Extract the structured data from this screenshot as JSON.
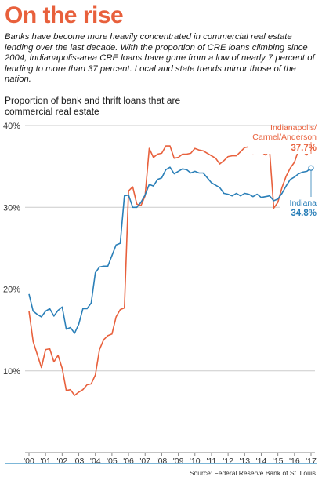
{
  "header": {
    "title": "On the rise",
    "deck": "Banks have become more heavily concentrated in commercial real estate lending over the last decade. With the proportion of CRE loans climbing since 2004, Indianapolis-area CRE loans have gone from a low of nearly 7 percent of lending to more than 37 percent. Local and state trends mirror those of the nation.",
    "chart_title": "Proportion of bank and thrift loans that are commercial real estate"
  },
  "footer": {
    "source": "Source: Federal Reserve Bank of St. Louis"
  },
  "colors": {
    "title": "#e8603c",
    "indianapolis": "#e8603c",
    "indiana": "#2a7fb8",
    "grid": "#cccccc",
    "axis": "#888888",
    "rule": "#7db7d8"
  },
  "chart_data": {
    "type": "line",
    "title": "Proportion of bank and thrift loans that are commercial real estate",
    "xlabel": "",
    "ylabel": "",
    "ylim": [
      0,
      40
    ],
    "y_ticks": [
      "10%",
      "20%",
      "30%",
      "40%"
    ],
    "x_tick_labels": [
      "'00",
      "'01",
      "'02",
      "'03",
      "'04",
      "'05",
      "'06",
      "'07",
      "'08",
      "'09",
      "'10",
      "'11",
      "'12",
      "'13",
      "'14",
      "'15",
      "'16",
      "'17"
    ],
    "grid": "horizontal",
    "series": [
      {
        "name": "Indianapolis/ Carmel/Anderson",
        "end_label_1": "Indianapolis/",
        "end_label_2": "Carmel/Anderson",
        "end_value_label": "37.7%",
        "color": "#e8603c",
        "points": [
          [
            2000.0,
            17.3
          ],
          [
            2000.25,
            13.6
          ],
          [
            2000.5,
            12.0
          ],
          [
            2000.75,
            10.4
          ],
          [
            2001.0,
            12.6
          ],
          [
            2001.25,
            12.7
          ],
          [
            2001.5,
            11.1
          ],
          [
            2001.75,
            11.9
          ],
          [
            2002.0,
            10.3
          ],
          [
            2002.25,
            7.6
          ],
          [
            2002.5,
            7.7
          ],
          [
            2002.75,
            7.0
          ],
          [
            2003.0,
            7.4
          ],
          [
            2003.25,
            7.7
          ],
          [
            2003.5,
            8.3
          ],
          [
            2003.75,
            8.4
          ],
          [
            2004.0,
            9.5
          ],
          [
            2004.25,
            12.6
          ],
          [
            2004.5,
            13.8
          ],
          [
            2004.75,
            14.3
          ],
          [
            2005.0,
            14.5
          ],
          [
            2005.25,
            16.6
          ],
          [
            2005.5,
            17.5
          ],
          [
            2005.75,
            17.7
          ],
          [
            2006.0,
            32.0
          ],
          [
            2006.25,
            32.5
          ],
          [
            2006.5,
            30.4
          ],
          [
            2006.75,
            30.2
          ],
          [
            2007.0,
            31.4
          ],
          [
            2007.25,
            37.2
          ],
          [
            2007.5,
            36.1
          ],
          [
            2007.75,
            36.5
          ],
          [
            2008.0,
            36.6
          ],
          [
            2008.25,
            37.5
          ],
          [
            2008.5,
            37.5
          ],
          [
            2008.75,
            36.0
          ],
          [
            2009.0,
            36.1
          ],
          [
            2009.25,
            36.5
          ],
          [
            2009.5,
            36.5
          ],
          [
            2009.75,
            36.6
          ],
          [
            2010.0,
            37.2
          ],
          [
            2010.25,
            37.0
          ],
          [
            2010.5,
            36.9
          ],
          [
            2010.75,
            36.6
          ],
          [
            2011.0,
            36.3
          ],
          [
            2011.25,
            36.0
          ],
          [
            2011.5,
            35.3
          ],
          [
            2011.75,
            35.7
          ],
          [
            2012.0,
            36.2
          ],
          [
            2012.25,
            36.3
          ],
          [
            2012.5,
            36.3
          ],
          [
            2012.75,
            36.8
          ],
          [
            2013.0,
            37.3
          ],
          [
            2013.25,
            37.4
          ],
          [
            2013.5,
            36.6
          ],
          [
            2013.75,
            37.0
          ],
          [
            2014.0,
            36.8
          ],
          [
            2014.25,
            36.4
          ],
          [
            2014.5,
            36.9
          ],
          [
            2014.75,
            29.9
          ],
          [
            2015.0,
            30.6
          ],
          [
            2015.25,
            32.4
          ],
          [
            2015.5,
            33.8
          ],
          [
            2015.75,
            34.8
          ],
          [
            2016.0,
            35.5
          ],
          [
            2016.25,
            37.0
          ],
          [
            2016.5,
            36.8
          ],
          [
            2016.75,
            36.4
          ],
          [
            2017.0,
            37.7
          ]
        ]
      },
      {
        "name": "Indiana",
        "end_label_1": "Indiana",
        "end_value_label": "34.8%",
        "color": "#2a7fb8",
        "points": [
          [
            2000.0,
            19.4
          ],
          [
            2000.25,
            17.3
          ],
          [
            2000.5,
            16.9
          ],
          [
            2000.75,
            16.6
          ],
          [
            2001.0,
            17.3
          ],
          [
            2001.25,
            17.6
          ],
          [
            2001.5,
            16.7
          ],
          [
            2001.75,
            17.4
          ],
          [
            2002.0,
            17.8
          ],
          [
            2002.25,
            15.1
          ],
          [
            2002.5,
            15.3
          ],
          [
            2002.75,
            14.6
          ],
          [
            2003.0,
            15.7
          ],
          [
            2003.25,
            17.6
          ],
          [
            2003.5,
            17.6
          ],
          [
            2003.75,
            18.3
          ],
          [
            2004.0,
            22.0
          ],
          [
            2004.25,
            22.7
          ],
          [
            2004.5,
            22.8
          ],
          [
            2004.75,
            22.8
          ],
          [
            2005.0,
            24.1
          ],
          [
            2005.25,
            25.4
          ],
          [
            2005.5,
            25.6
          ],
          [
            2005.75,
            31.4
          ],
          [
            2006.0,
            31.5
          ],
          [
            2006.25,
            30.0
          ],
          [
            2006.5,
            30.0
          ],
          [
            2006.75,
            30.6
          ],
          [
            2007.0,
            31.5
          ],
          [
            2007.25,
            32.8
          ],
          [
            2007.5,
            32.6
          ],
          [
            2007.75,
            33.4
          ],
          [
            2008.0,
            33.6
          ],
          [
            2008.25,
            34.6
          ],
          [
            2008.5,
            34.9
          ],
          [
            2008.75,
            34.1
          ],
          [
            2009.0,
            34.4
          ],
          [
            2009.25,
            34.7
          ],
          [
            2009.5,
            34.6
          ],
          [
            2009.75,
            34.2
          ],
          [
            2010.0,
            34.4
          ],
          [
            2010.25,
            34.2
          ],
          [
            2010.5,
            34.2
          ],
          [
            2010.75,
            33.6
          ],
          [
            2011.0,
            33.0
          ],
          [
            2011.25,
            32.7
          ],
          [
            2011.5,
            32.4
          ],
          [
            2011.75,
            31.7
          ],
          [
            2012.0,
            31.6
          ],
          [
            2012.25,
            31.4
          ],
          [
            2012.5,
            31.7
          ],
          [
            2012.75,
            31.4
          ],
          [
            2013.0,
            31.7
          ],
          [
            2013.25,
            31.6
          ],
          [
            2013.5,
            31.3
          ],
          [
            2013.75,
            31.6
          ],
          [
            2014.0,
            31.2
          ],
          [
            2014.25,
            31.3
          ],
          [
            2014.5,
            31.4
          ],
          [
            2014.75,
            30.8
          ],
          [
            2015.0,
            31.0
          ],
          [
            2015.25,
            31.7
          ],
          [
            2015.5,
            32.6
          ],
          [
            2015.75,
            33.4
          ],
          [
            2016.0,
            33.7
          ],
          [
            2016.25,
            34.1
          ],
          [
            2016.5,
            34.3
          ],
          [
            2016.75,
            34.4
          ],
          [
            2017.0,
            34.8
          ]
        ]
      }
    ]
  }
}
